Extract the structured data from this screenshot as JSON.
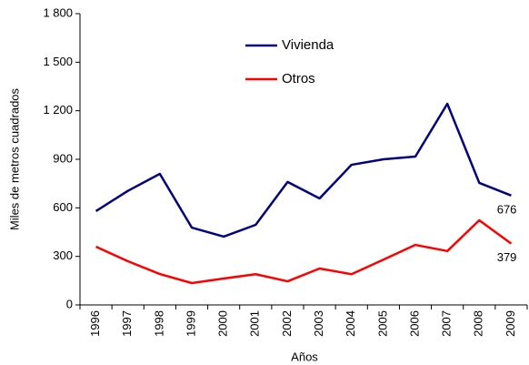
{
  "chart_data": {
    "type": "line",
    "x_label": "Años",
    "y_label": "Miles de metros cuadrados",
    "categories": [
      "1996",
      "1997",
      "1998",
      "1999",
      "2000",
      "2001",
      "2002",
      "2003",
      "2004",
      "2005",
      "2006",
      "2007",
      "2008",
      "2009"
    ],
    "series": [
      {
        "name": "Vivienda",
        "color": "#000080",
        "values": [
          580,
          705,
          810,
          478,
          422,
          495,
          760,
          658,
          866,
          900,
          917,
          1243,
          754,
          676
        ]
      },
      {
        "name": "Otros",
        "color": "#ff0000",
        "values": [
          360,
          270,
          191,
          135,
          163,
          190,
          146,
          225,
          190,
          280,
          371,
          333,
          523,
          379
        ]
      }
    ],
    "data_labels": "last",
    "ylim": [
      0,
      1800
    ],
    "yticks": [
      0,
      300,
      600,
      900,
      {
        "value": 1200,
        "label": "1 200"
      },
      {
        "value": 1500,
        "label": "1 500"
      },
      {
        "value": 1800,
        "label": "1 800"
      }
    ],
    "grid": false
  }
}
